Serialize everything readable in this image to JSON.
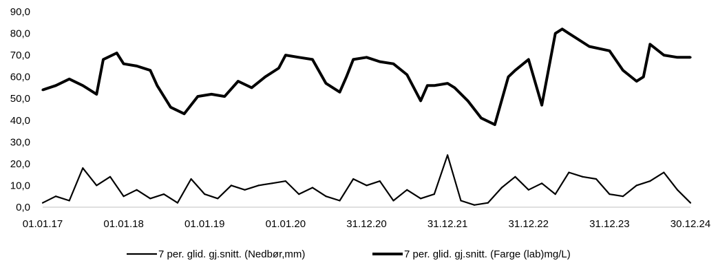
{
  "chart_data": {
    "type": "line",
    "title": "",
    "xlabel": "",
    "ylabel": "",
    "ylim": [
      0,
      90
    ],
    "yticks": [
      "0,0",
      "10,0",
      "20,0",
      "30,0",
      "40,0",
      "50,0",
      "60,0",
      "70,0",
      "80,0",
      "90,0"
    ],
    "xticks": [
      "01.01.17",
      "01.01.18",
      "01.01.19",
      "01.01.20",
      "31.12.20",
      "31.12.21",
      "31.12.22",
      "31.12.23",
      "30.12.24"
    ],
    "grid": false,
    "legend_position": "bottom",
    "series": [
      {
        "name": "7 per. glid. gj.snitt. (Nedbør,mm)",
        "color": "#000000",
        "style": "thin",
        "x": [
          "01.01.17",
          "01.03.17",
          "01.05.17",
          "01.07.17",
          "01.09.17",
          "01.11.17",
          "01.01.18",
          "01.03.18",
          "01.05.18",
          "01.07.18",
          "01.09.18",
          "01.11.18",
          "01.01.19",
          "01.03.19",
          "01.05.19",
          "01.07.19",
          "01.09.19",
          "01.11.19",
          "01.01.20",
          "01.03.20",
          "01.05.20",
          "01.07.20",
          "01.09.20",
          "01.11.20",
          "31.12.20",
          "01.03.21",
          "01.05.21",
          "01.07.21",
          "01.09.21",
          "01.11.21",
          "31.12.21",
          "01.03.22",
          "01.05.22",
          "01.07.22",
          "01.09.22",
          "01.11.22",
          "31.12.22",
          "01.03.23",
          "01.05.23",
          "01.07.23",
          "01.09.23",
          "01.11.23",
          "31.12.23",
          "01.03.24",
          "01.05.24",
          "01.07.24",
          "01.09.24",
          "01.11.24",
          "30.12.24"
        ],
        "y": [
          2,
          5,
          3,
          18,
          10,
          14,
          5,
          8,
          4,
          6,
          2,
          13,
          6,
          4,
          10,
          8,
          10,
          11,
          12,
          6,
          9,
          5,
          3,
          13,
          10,
          12,
          3,
          8,
          4,
          6,
          24,
          3,
          1,
          2,
          9,
          14,
          8,
          11,
          6,
          16,
          14,
          13,
          6,
          5,
          10,
          12,
          16,
          8,
          2
        ]
      },
      {
        "name": "7 per. glid. gj.snitt. (Farge (lab)mg/L)",
        "color": "#000000",
        "style": "thick",
        "x": [
          "01.01.17",
          "01.03.17",
          "01.05.17",
          "01.07.17",
          "01.09.17",
          "01.10.17",
          "01.12.17",
          "01.01.18",
          "01.03.18",
          "01.05.18",
          "01.06.18",
          "01.08.18",
          "01.10.18",
          "01.12.18",
          "01.02.19",
          "01.04.19",
          "01.06.19",
          "01.08.19",
          "01.10.19",
          "01.12.19",
          "01.01.20",
          "01.03.20",
          "01.05.20",
          "01.07.20",
          "01.09.20",
          "01.10.20",
          "01.11.20",
          "31.12.20",
          "01.03.21",
          "01.05.21",
          "01.07.21",
          "01.09.21",
          "01.10.21",
          "01.11.21",
          "31.12.21",
          "01.02.22",
          "01.04.22",
          "01.06.22",
          "01.08.22",
          "01.10.22",
          "01.11.22",
          "31.12.22",
          "01.03.23",
          "01.05.23",
          "01.06.23",
          "01.07.23",
          "01.08.23",
          "01.10.23",
          "31.12.23",
          "01.03.24",
          "01.05.24",
          "01.06.24",
          "01.07.24",
          "01.09.24",
          "01.11.24",
          "30.12.24"
        ],
        "y": [
          54,
          56,
          59,
          56,
          52,
          68,
          71,
          66,
          65,
          63,
          56,
          46,
          43,
          51,
          52,
          51,
          58,
          55,
          60,
          64,
          70,
          69,
          68,
          57,
          53,
          60,
          68,
          69,
          67,
          66,
          61,
          49,
          56,
          56,
          57,
          55,
          49,
          41,
          38,
          60,
          63,
          68,
          47,
          80,
          82,
          80,
          78,
          74,
          72,
          63,
          58,
          60,
          75,
          70,
          69,
          69
        ]
      }
    ]
  }
}
